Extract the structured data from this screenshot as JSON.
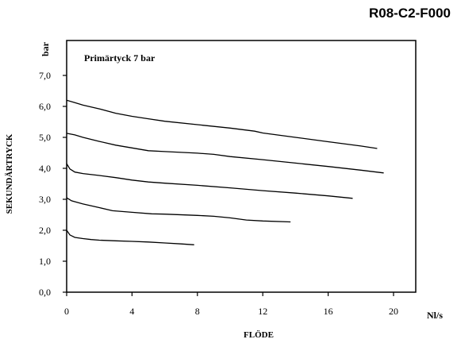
{
  "chart_data": {
    "type": "line",
    "code": "R08-C2-F000",
    "annotation": "Primärtyck 7 bar",
    "xlabel": "FLÖDE",
    "ylabel": "SEKUNDÄRTRYCK",
    "x_unit": "Nl/s",
    "y_unit": "bar",
    "xlim": [
      0,
      24
    ],
    "ylim": [
      0,
      8
    ],
    "x_ticks": [
      "0",
      "4",
      "8",
      "12",
      "16",
      "20"
    ],
    "y_ticks": [
      "0,0",
      "1,0",
      "2,0",
      "3,0",
      "4,0",
      "5,0",
      "6,0",
      "7,0"
    ],
    "grid": false,
    "legend": "none",
    "series": [
      {
        "x": [
          0,
          0.2,
          0.5,
          1,
          1.5,
          2,
          3,
          4,
          5,
          6,
          7,
          7.8
        ],
        "y": [
          2.0,
          1.85,
          1.77,
          1.73,
          1.7,
          1.68,
          1.66,
          1.64,
          1.62,
          1.59,
          1.56,
          1.53
        ]
      },
      {
        "x": [
          0,
          0.3,
          1,
          2,
          2.8,
          4,
          5.2,
          6,
          8,
          9,
          10,
          11,
          12,
          13.7
        ],
        "y": [
          3.05,
          2.95,
          2.85,
          2.73,
          2.63,
          2.58,
          2.53,
          2.52,
          2.48,
          2.45,
          2.4,
          2.33,
          2.3,
          2.27
        ]
      },
      {
        "x": [
          0,
          0.2,
          0.5,
          1,
          2,
          3,
          4,
          5,
          6,
          8,
          10,
          12,
          14,
          16,
          17.5
        ],
        "y": [
          4.15,
          3.98,
          3.88,
          3.83,
          3.77,
          3.7,
          3.62,
          3.56,
          3.52,
          3.45,
          3.37,
          3.28,
          3.2,
          3.11,
          3.03
        ]
      },
      {
        "x": [
          0,
          0.5,
          1,
          2,
          3,
          4,
          5,
          6,
          8,
          9,
          10,
          12,
          14,
          16,
          18,
          19.4
        ],
        "y": [
          5.13,
          5.08,
          5.0,
          4.87,
          4.75,
          4.66,
          4.57,
          4.54,
          4.49,
          4.45,
          4.38,
          4.28,
          4.17,
          4.06,
          3.94,
          3.85
        ]
      },
      {
        "x": [
          0,
          0.5,
          1,
          2,
          3,
          4,
          5,
          6,
          8,
          10,
          11.5,
          12,
          14,
          16,
          18,
          19
        ],
        "y": [
          6.2,
          6.12,
          6.04,
          5.92,
          5.78,
          5.68,
          5.6,
          5.52,
          5.41,
          5.3,
          5.2,
          5.14,
          5.0,
          4.86,
          4.72,
          4.64
        ]
      }
    ]
  }
}
